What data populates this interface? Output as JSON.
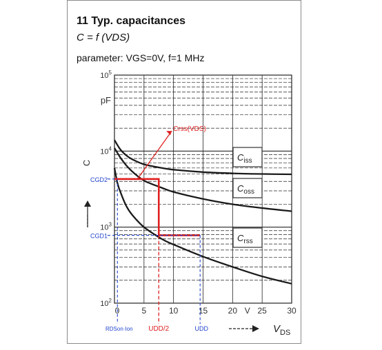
{
  "header": {
    "title": "11 Typ. capacitances",
    "formula": "C = f (VDS)",
    "parameter": "parameter: VGS=0V, f=1 MHz"
  },
  "chart_data": {
    "type": "line",
    "yscale": "log",
    "ylabel": "C",
    "yunit": "pF",
    "xlabel": "VDS",
    "xunit": "V",
    "xlim": [
      0,
      30
    ],
    "ylim": [
      100,
      100000
    ],
    "xticks": [
      0,
      5,
      10,
      15,
      20,
      25,
      30
    ],
    "yticks": [
      {
        "value": 100,
        "label": "10 2"
      },
      {
        "value": 1000,
        "label": "10 3"
      },
      {
        "value": 10000,
        "label": "10 4"
      },
      {
        "value": 100000,
        "label": "10 5"
      }
    ],
    "grid": true,
    "series": [
      {
        "name": "Ciss",
        "x": [
          0,
          1,
          2,
          3,
          5,
          8,
          10,
          15,
          20,
          25,
          30
        ],
        "y": [
          14000,
          10500,
          8800,
          7800,
          6700,
          6000,
          5700,
          5300,
          5100,
          5000,
          4950
        ]
      },
      {
        "name": "Coss",
        "x": [
          0,
          1,
          2,
          3,
          5,
          8,
          10,
          15,
          20,
          25,
          30
        ],
        "y": [
          11000,
          8200,
          6500,
          5400,
          4100,
          3300,
          2900,
          2350,
          2000,
          1780,
          1620
        ]
      },
      {
        "name": "Crss",
        "x": [
          0,
          0.5,
          1,
          2,
          3,
          5,
          8,
          10,
          15,
          20,
          25,
          30
        ],
        "y": [
          6000,
          3800,
          2900,
          1900,
          1450,
          1000,
          700,
          590,
          410,
          300,
          225,
          180
        ]
      }
    ],
    "annotations": {
      "crss_vds": "Crss(VDS)",
      "cgd2": "CGD2",
      "cgd1": "CGD1",
      "rdson": "RDSon·Ion",
      "udd_half": "UDD/2",
      "udd": "UDD"
    },
    "model": {
      "red": {
        "x": [
          0,
          7.5,
          7.5,
          14.5
        ],
        "y": [
          4300,
          4300,
          780,
          780
        ]
      },
      "crss_marker": {
        "x": 3.8,
        "y": 4200
      },
      "crss_label": {
        "x": 10.4,
        "y": 20000
      },
      "blue": {
        "x_rdson": 0.5,
        "x_udd_half": 7.5,
        "x_udd": 14.5,
        "cgd2": 4300,
        "cgd1": 780
      }
    },
    "colors": {
      "curve": "#1a1a1a",
      "grid": "#222222",
      "model": "#e02020",
      "blue": "#2244cc"
    },
    "curve_labels": [
      {
        "label": "Ciss",
        "main": "C",
        "sub": "iss",
        "series": "Ciss"
      },
      {
        "label": "Coss",
        "main": "C",
        "sub": "oss",
        "series": "Coss"
      },
      {
        "label": "Crss",
        "main": "C",
        "sub": "rss",
        "series": "Crss"
      }
    ]
  }
}
